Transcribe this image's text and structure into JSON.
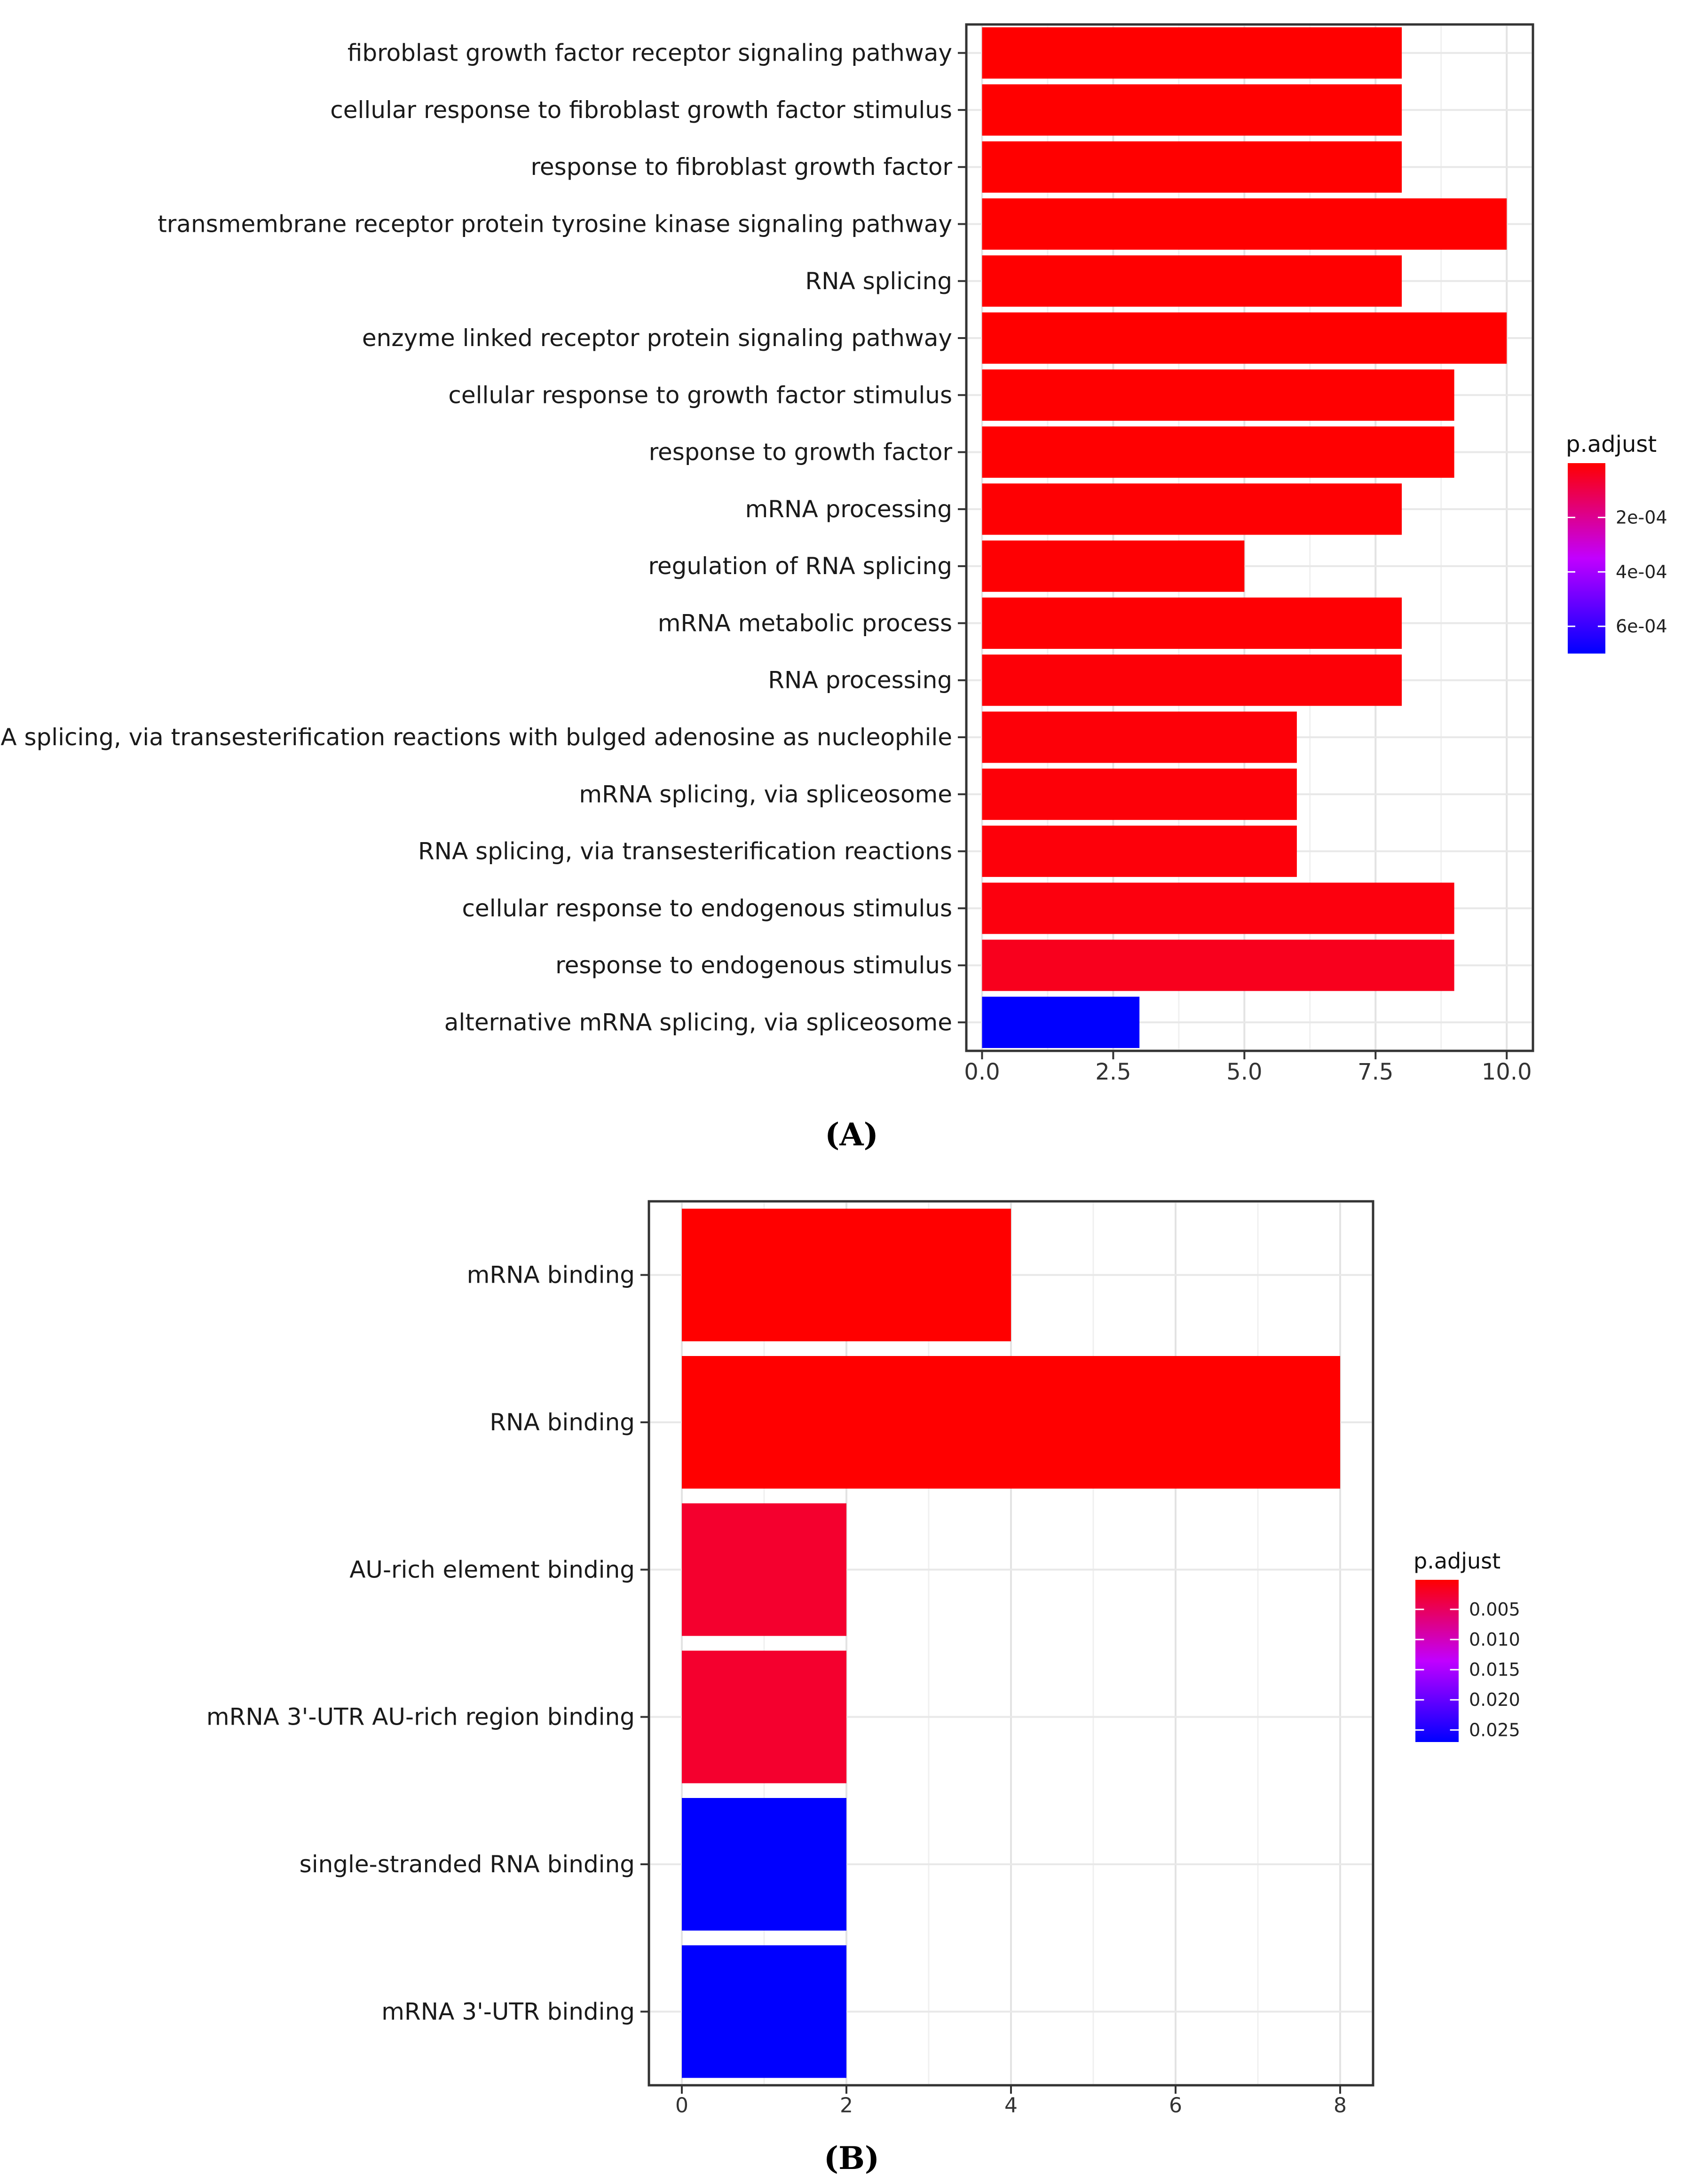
{
  "chart_data": [
    {
      "type": "bar",
      "orientation": "horizontal",
      "panel_label": "(A)",
      "title": "",
      "xlabel": "",
      "ylabel": "",
      "xlim": [
        -0.3,
        10.5
      ],
      "x_ticks": [
        "0.0",
        "2.5",
        "5.0",
        "7.5",
        "10.0"
      ],
      "x_tick_values": [
        0,
        2.5,
        5,
        7.5,
        10
      ],
      "grid": true,
      "legend_position": "right",
      "categories": [
        "fibroblast growth factor receptor signaling pathway",
        "cellular response to fibroblast growth factor stimulus",
        "response to fibroblast growth factor",
        "transmembrane receptor protein tyrosine kinase signaling pathway",
        "RNA splicing",
        "enzyme linked receptor protein signaling pathway",
        "cellular response to growth factor stimulus",
        "response to growth factor",
        "mRNA processing",
        "regulation of RNA splicing",
        "mRNA metabolic process",
        "RNA processing",
        "RNA splicing, via transesterification reactions with bulged adenosine as nucleophile",
        "mRNA splicing, via spliceosome",
        "RNA splicing, via transesterification reactions",
        "cellular response to endogenous stimulus",
        "response to endogenous stimulus",
        "alternative mRNA splicing, via spliceosome"
      ],
      "values": [
        8,
        8,
        8,
        10,
        8,
        10,
        9,
        9,
        8,
        5,
        8,
        8,
        6,
        6,
        6,
        9,
        9,
        3
      ],
      "p_adjust": [
        1e-06,
        1e-06,
        1e-06,
        1e-06,
        2e-06,
        1e-06,
        2e-06,
        2e-06,
        4e-06,
        5e-06,
        6e-06,
        1e-05,
        1.2e-05,
        1.2e-05,
        1.4e-05,
        2e-05,
        4e-05,
        0.0007
      ],
      "colorbar": {
        "title": "p.adjust",
        "min": 5e-07,
        "max": 0.0007,
        "tick_values": [
          0.0002,
          0.0004,
          0.0006
        ],
        "tick_labels": [
          "2e-04",
          "4e-04",
          "6e-04"
        ],
        "low_color": "#ff0000",
        "mid_color": "#c100ff",
        "high_color": "#0000ff"
      }
    },
    {
      "type": "bar",
      "orientation": "horizontal",
      "panel_label": "(B)",
      "title": "",
      "xlabel": "",
      "ylabel": "",
      "xlim": [
        -0.4,
        8.4
      ],
      "x_ticks": [
        "0",
        "2",
        "4",
        "6",
        "8"
      ],
      "x_tick_values": [
        0,
        2,
        4,
        6,
        8
      ],
      "grid": true,
      "legend_position": "right",
      "categories": [
        "mRNA binding",
        "RNA binding",
        "AU-rich element binding",
        "mRNA 3'-UTR AU-rich region binding",
        "single-stranded RNA binding",
        "mRNA 3'-UTR binding"
      ],
      "values": [
        4,
        8,
        2,
        2,
        2,
        2
      ],
      "p_adjust": [
        0.0001,
        0.0001,
        0.0025,
        0.0025,
        0.027,
        0.027
      ],
      "colorbar": {
        "title": "p.adjust",
        "min": 0.0001,
        "max": 0.027,
        "tick_values": [
          0.005,
          0.01,
          0.015,
          0.02,
          0.025
        ],
        "tick_labels": [
          "0.005",
          "0.010",
          "0.015",
          "0.020",
          "0.025"
        ],
        "low_color": "#ff0000",
        "mid_color": "#c100ff",
        "high_color": "#0000ff"
      }
    }
  ]
}
